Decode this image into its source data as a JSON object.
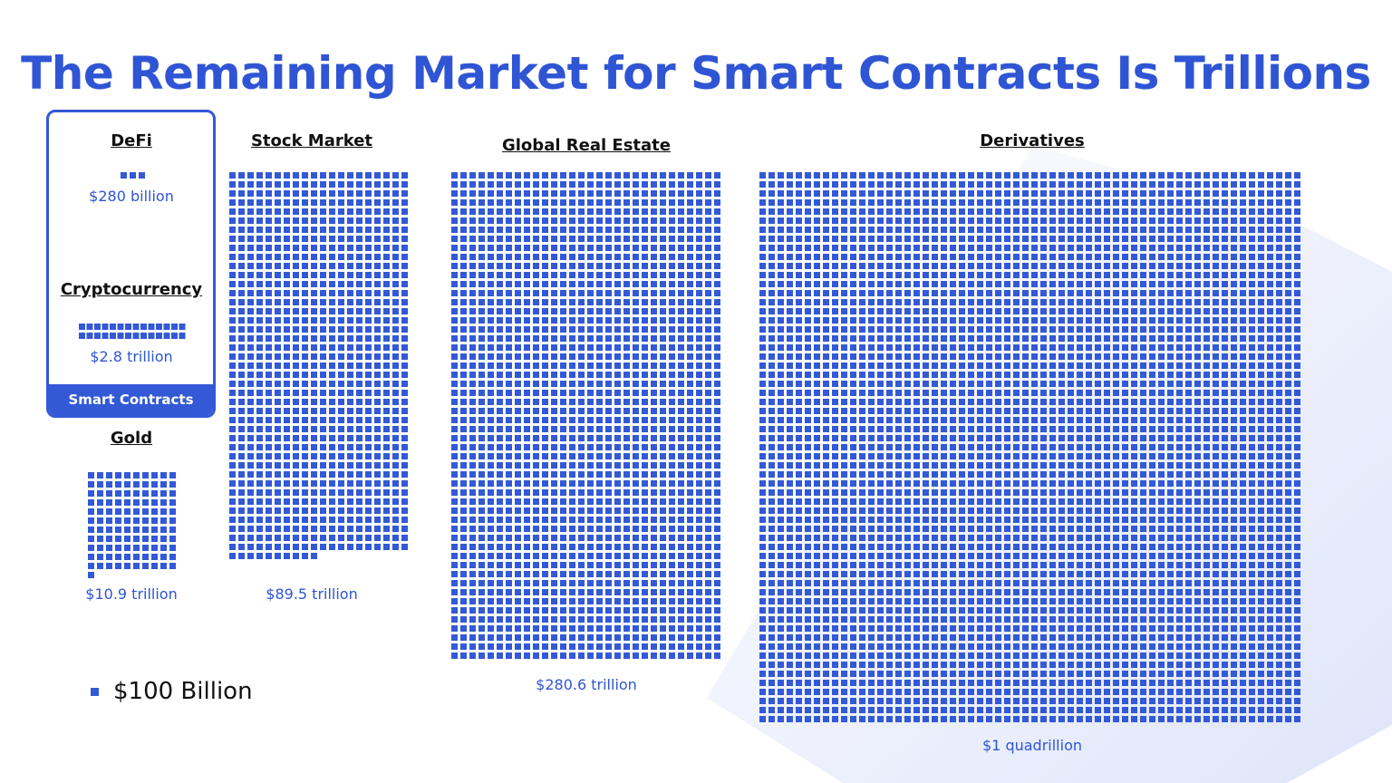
{
  "title": "The Remaining Market for Smart Contracts Is Trillions",
  "colors": {
    "accent": "#3359d6",
    "title": "#2f55d4",
    "background_shape": "#e6eafb"
  },
  "chart_data": {
    "type": "waffle",
    "unit": "$100 Billion",
    "group_label": "Smart Contracts",
    "grid": false,
    "legend_placement": "bottom-left",
    "markets": [
      {
        "name": "DeFi",
        "value_label": "$280 billion",
        "value_billion": 280
      },
      {
        "name": "Cryptocurrency",
        "value_label": "$2.8 trillion",
        "value_billion": 2800
      },
      {
        "name": "Gold",
        "value_label": "$10.9 trillion",
        "value_billion": 10900
      },
      {
        "name": "Stock Market",
        "value_label": "$89.5 trillion",
        "value_billion": 89500
      },
      {
        "name": "Global Real Estate",
        "value_label": "$280.6 trillion",
        "value_billion": 280600
      },
      {
        "name": "Derivatives",
        "value_label": "$1 quadrillion",
        "value_billion": 1000000
      }
    ]
  }
}
